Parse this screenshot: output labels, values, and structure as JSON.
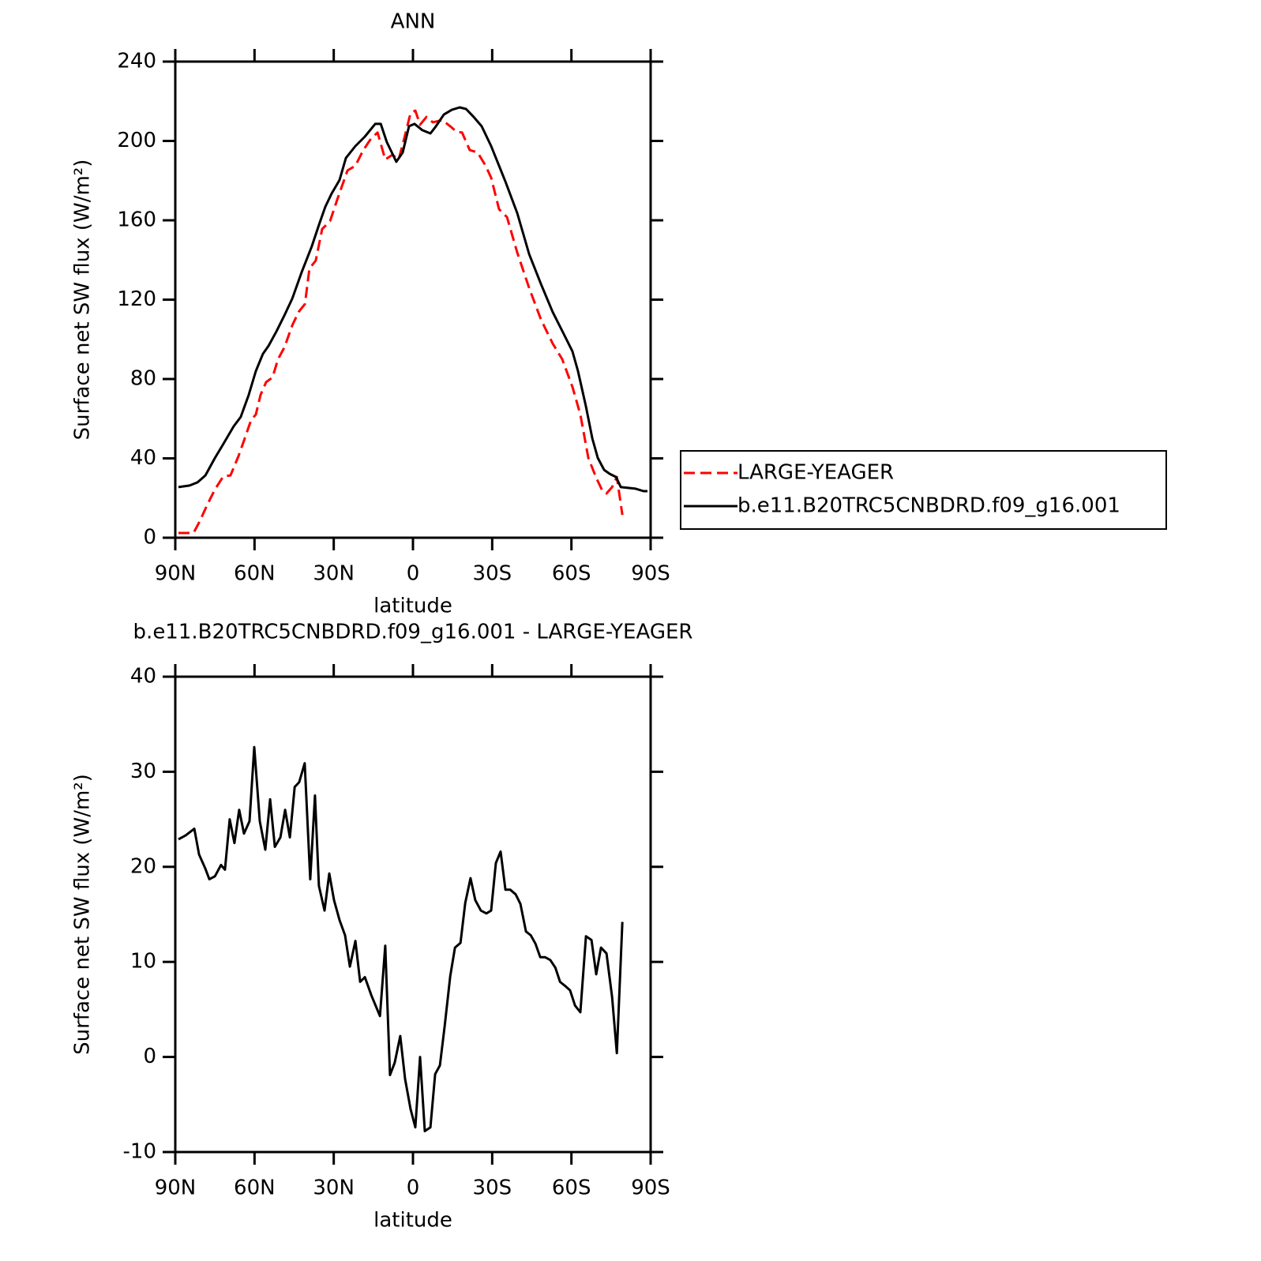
{
  "chart_data": [
    {
      "type": "line",
      "title": "ANN",
      "x_label": "latitude",
      "y_label": "Surface net SW flux (W/m²)",
      "xlim": [
        90,
        -90
      ],
      "ylim": [
        0,
        240
      ],
      "xticks": [
        {
          "value": 90,
          "label": "90N"
        },
        {
          "value": 60,
          "label": "60N"
        },
        {
          "value": 30,
          "label": "30N"
        },
        0,
        {
          "value": -30,
          "label": "30S"
        },
        {
          "value": -60,
          "label": "60S"
        },
        {
          "value": -90,
          "label": "90S"
        }
      ],
      "yticks": [
        0,
        40,
        80,
        120,
        160,
        200,
        240
      ],
      "legend": "right",
      "series": [
        {
          "name": "LARGE-YEAGER",
          "color": "#ff0000",
          "line_style": "dashed",
          "x": [
            88.8,
            83.1,
            80.7,
            78.0,
            75.0,
            71.8,
            69.1,
            66.1,
            63.7,
            61.3,
            59.5,
            57.7,
            55.6,
            53.2,
            51.1,
            48.7,
            45.7,
            43.3,
            40.9,
            39.2,
            36.8,
            34.4,
            31.4,
            28.4,
            24.8,
            21.8,
            18.8,
            15.8,
            13.4,
            10.5,
            7.8,
            5.4,
            3.3,
            0.9,
            -0.9,
            -2.7,
            -5.1,
            -7.5,
            -11.1,
            -14.1,
            -16.5,
            -18.6,
            -21.5,
            -24.5,
            -27.5,
            -29.6,
            -32.6,
            -35.6,
            -39.5,
            -44.0,
            -48.5,
            -52.9,
            -56.5,
            -60.4,
            -63.4,
            -66.4,
            -69.4,
            -71.8,
            -73.3,
            -75.4,
            -77.2,
            -79.3
          ],
          "values": [
            2.4,
            2.4,
            8.4,
            16.3,
            24.3,
            31.0,
            31.4,
            41.0,
            50.1,
            59.3,
            62.1,
            72.0,
            78.4,
            80.8,
            90.0,
            95.9,
            107.1,
            113.8,
            117.8,
            135.7,
            139.7,
            155.6,
            159.6,
            171.5,
            185.1,
            187.5,
            195.4,
            201.4,
            204.2,
            190.6,
            193.0,
            190.6,
            201.4,
            214.1,
            215.3,
            208.2,
            212.1,
            209.4,
            210.5,
            207.4,
            204.6,
            204.2,
            195.4,
            194.2,
            187.5,
            181.5,
            165.6,
            161.6,
            143.7,
            125.8,
            109.9,
            97.9,
            90.0,
            76.0,
            62.1,
            40.2,
            30.2,
            23.5,
            22.3,
            25.5,
            30.6,
            11.5
          ]
        },
        {
          "name": "b.e11.B20TRC5CNBDRD.f09_g16.001",
          "color": "#000000",
          "line_style": "solid",
          "x": [
            88.8,
            84.6,
            81.6,
            78.6,
            75.0,
            72.1,
            67.9,
            65.2,
            62.2,
            59.5,
            56.8,
            54.7,
            51.7,
            48.7,
            45.7,
            42.2,
            38.3,
            35.3,
            33.2,
            30.8,
            27.8,
            25.4,
            21.8,
            18.2,
            14.3,
            12.2,
            9.9,
            6.3,
            3.9,
            1.5,
            -0.6,
            -3.6,
            -6.6,
            -8.7,
            -11.7,
            -14.7,
            -17.7,
            -20.1,
            -23.0,
            -26.0,
            -29.6,
            -35.0,
            -39.5,
            -44.0,
            -48.5,
            -52.9,
            -57.4,
            -60.4,
            -62.5,
            -65.5,
            -67.9,
            -70.0,
            -72.4,
            -74.5,
            -76.9,
            -78.7,
            -84.3,
            -87.3,
            -88.8
          ],
          "values": [
            25.5,
            26.3,
            27.9,
            31.4,
            40.2,
            46.6,
            56.1,
            60.9,
            72.0,
            84.0,
            92.7,
            96.7,
            104.0,
            112.0,
            120.6,
            133.7,
            146.9,
            158.8,
            166.8,
            173.5,
            180.3,
            191.4,
            197.4,
            202.2,
            208.6,
            208.6,
            199.4,
            189.5,
            194.2,
            207.4,
            208.6,
            205.4,
            203.8,
            207.4,
            213.3,
            215.7,
            216.9,
            216.1,
            212.1,
            207.4,
            197.4,
            179.5,
            163.6,
            142.9,
            127.8,
            113.8,
            101.9,
            93.9,
            84.0,
            66.1,
            50.1,
            40.2,
            34.2,
            32.2,
            30.6,
            25.5,
            24.7,
            23.5,
            23.5
          ]
        }
      ]
    },
    {
      "type": "line",
      "title": "b.e11.B20TRC5CNBDRD.f09_g16.001 - LARGE-YEAGER",
      "x_label": "latitude",
      "y_label": "Surface net SW flux (W/m²)",
      "xlim": [
        90,
        -90
      ],
      "ylim": [
        -10,
        40
      ],
      "xticks": [
        {
          "value": 90,
          "label": "90N"
        },
        {
          "value": 60,
          "label": "60N"
        },
        {
          "value": 30,
          "label": "30N"
        },
        0,
        {
          "value": -30,
          "label": "30S"
        },
        {
          "value": -60,
          "label": "60S"
        },
        {
          "value": -90,
          "label": "90S"
        }
      ],
      "yticks": [
        -10,
        0,
        10,
        20,
        30,
        40
      ],
      "series": [
        {
          "color": "#000000",
          "line_style": "solid",
          "x": [
            88.8,
            86.1,
            82.8,
            81.0,
            78.6,
            77.1,
            75.0,
            72.7,
            71.2,
            69.4,
            67.6,
            65.8,
            64.0,
            61.9,
            60.1,
            58.0,
            55.9,
            54.1,
            52.3,
            50.2,
            48.4,
            46.6,
            44.8,
            43.1,
            41.0,
            38.9,
            37.1,
            35.6,
            33.5,
            31.7,
            29.9,
            27.8,
            25.7,
            23.9,
            21.8,
            20.0,
            18.2,
            15.8,
            12.5,
            10.5,
            8.7,
            6.9,
            4.8,
            3.0,
            0.9,
            -0.9,
            -2.7,
            -4.5,
            -6.6,
            -8.4,
            -10.2,
            -12.0,
            -14.1,
            -15.9,
            -18.0,
            -19.8,
            -21.8,
            -23.6,
            -25.7,
            -27.8,
            -29.6,
            -31.4,
            -33.2,
            -35.0,
            -36.8,
            -38.9,
            -40.7,
            -42.8,
            -44.6,
            -46.4,
            -48.2,
            -50.0,
            -52.0,
            -53.9,
            -55.7,
            -57.5,
            -59.5,
            -61.4,
            -63.4,
            -65.5,
            -67.6,
            -69.4,
            -71.2,
            -73.3,
            -75.4,
            -77.2,
            -79.3
          ],
          "values": [
            22.9,
            23.3,
            24.0,
            21.3,
            19.8,
            18.7,
            19.0,
            20.2,
            19.7,
            25.0,
            22.5,
            26.0,
            23.5,
            24.8,
            32.6,
            24.8,
            21.8,
            27.1,
            22.1,
            23.1,
            26.0,
            23.1,
            28.4,
            28.9,
            30.9,
            18.7,
            27.5,
            18.0,
            15.4,
            19.3,
            16.5,
            14.4,
            12.8,
            9.5,
            12.2,
            7.9,
            8.4,
            6.5,
            4.3,
            11.7,
            -1.9,
            -0.6,
            2.2,
            -2.3,
            -5.5,
            -7.4,
            0.0,
            -7.8,
            -7.4,
            -1.8,
            -0.9,
            3.2,
            8.5,
            11.5,
            12.0,
            16.2,
            18.8,
            16.5,
            15.4,
            15.1,
            15.4,
            20.4,
            21.6,
            17.6,
            17.6,
            17.1,
            16.1,
            13.2,
            12.8,
            11.9,
            10.5,
            10.5,
            10.2,
            9.4,
            7.9,
            7.5,
            7.0,
            5.4,
            4.7,
            12.7,
            12.3,
            8.7,
            11.5,
            10.9,
            6.3,
            0.4,
            14.2
          ]
        }
      ]
    }
  ]
}
